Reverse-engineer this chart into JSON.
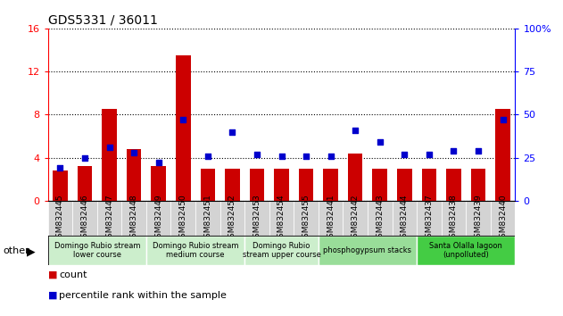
{
  "title": "GDS5331 / 36011",
  "samples": [
    "GSM832445",
    "GSM832446",
    "GSM832447",
    "GSM832448",
    "GSM832449",
    "GSM832450",
    "GSM832451",
    "GSM832452",
    "GSM832453",
    "GSM832454",
    "GSM832455",
    "GSM832441",
    "GSM832442",
    "GSM832443",
    "GSM832444",
    "GSM832437",
    "GSM832438",
    "GSM832439",
    "GSM832440"
  ],
  "counts": [
    2.8,
    3.2,
    8.5,
    4.8,
    3.2,
    13.5,
    3.0,
    3.0,
    3.0,
    3.0,
    3.0,
    3.0,
    4.4,
    3.0,
    3.0,
    3.0,
    3.0,
    3.0,
    8.5
  ],
  "percentiles": [
    19,
    25,
    31,
    28,
    22,
    47,
    26,
    40,
    27,
    26,
    26,
    26,
    41,
    34,
    27,
    27,
    29,
    29,
    47
  ],
  "bar_color": "#cc0000",
  "dot_color": "#0000cc",
  "ylim_left": [
    0,
    16
  ],
  "ylim_right": [
    0,
    100
  ],
  "yticks_left": [
    0,
    4,
    8,
    12,
    16
  ],
  "yticks_right": [
    0,
    25,
    50,
    75,
    100
  ],
  "groups": [
    {
      "label": "Domingo Rubio stream\nlower course",
      "start": 0,
      "end": 4,
      "color": "#cceecc"
    },
    {
      "label": "Domingo Rubio stream\nmedium course",
      "start": 4,
      "end": 8,
      "color": "#cceecc"
    },
    {
      "label": "Domingo Rubio\nstream upper course",
      "start": 8,
      "end": 11,
      "color": "#cceecc"
    },
    {
      "label": "phosphogypsum stacks",
      "start": 11,
      "end": 15,
      "color": "#99dd99"
    },
    {
      "label": "Santa Olalla lagoon\n(unpolluted)",
      "start": 15,
      "end": 19,
      "color": "#44cc44"
    }
  ],
  "bar_bg_color": "#d3d3d3",
  "legend_count_color": "#cc0000",
  "legend_dot_color": "#0000cc"
}
